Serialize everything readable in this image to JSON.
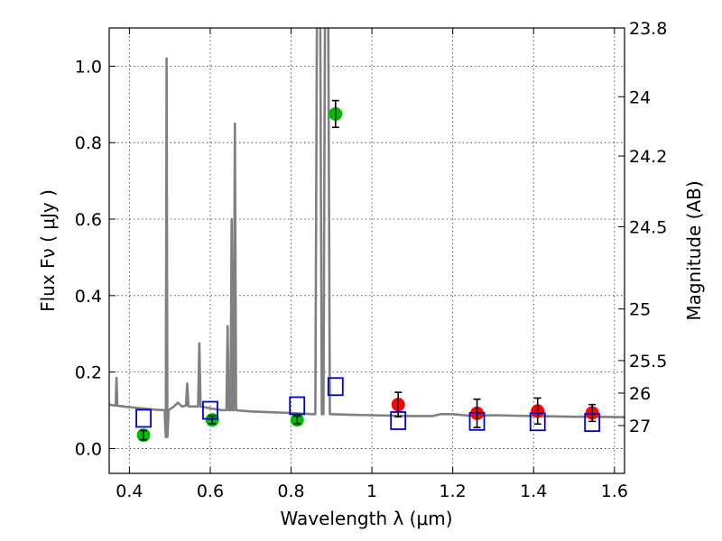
{
  "chart_data": {
    "type": "scatter",
    "xlabel": "Wavelength  λ (μm)",
    "ylabel": "Flux  Fν  ( μJy )",
    "y2label": "Magnitude (AB)",
    "xlim": [
      0.35,
      1.625
    ],
    "ylim": [
      -0.065,
      1.1
    ],
    "grid": true,
    "x_ticks": [
      0.4,
      0.6,
      0.8,
      1.0,
      1.2,
      1.4,
      1.6
    ],
    "x_tick_labels": [
      "0.4",
      "0.6",
      "0.8",
      "1",
      "1.2",
      "1.4",
      "1.6"
    ],
    "y_ticks": [
      0.0,
      0.2,
      0.4,
      0.6,
      0.8,
      1.0
    ],
    "y_tick_labels": [
      "0.0",
      "0.2",
      "0.4",
      "0.6",
      "0.8",
      "1.0"
    ],
    "y2_ticks": [
      {
        "label": "23.8",
        "flux": 1.1
      },
      {
        "label": "24",
        "flux": 0.92
      },
      {
        "label": "24.2",
        "flux": 0.765
      },
      {
        "label": "24.5",
        "flux": 0.58
      },
      {
        "label": "25",
        "flux": 0.365
      },
      {
        "label": "25.5",
        "flux": 0.23
      },
      {
        "label": "26",
        "flux": 0.145
      },
      {
        "label": "27",
        "flux": 0.06
      }
    ],
    "colors": {
      "spectrum": "#808080",
      "green": "#00bb00",
      "red": "#ff0000",
      "model": "#0000cc",
      "error": "#000000"
    },
    "spectrum": [
      [
        0.35,
        0.115
      ],
      [
        0.36,
        0.113
      ],
      [
        0.366,
        0.112
      ],
      [
        0.368,
        0.185
      ],
      [
        0.37,
        0.112
      ],
      [
        0.4,
        0.108
      ],
      [
        0.43,
        0.105
      ],
      [
        0.46,
        0.102
      ],
      [
        0.487,
        0.1
      ],
      [
        0.49,
        0.03
      ],
      [
        0.492,
        1.02
      ],
      [
        0.494,
        0.03
      ],
      [
        0.497,
        0.1
      ],
      [
        0.51,
        0.11
      ],
      [
        0.52,
        0.12
      ],
      [
        0.53,
        0.11
      ],
      [
        0.54,
        0.112
      ],
      [
        0.543,
        0.17
      ],
      [
        0.546,
        0.11
      ],
      [
        0.56,
        0.11
      ],
      [
        0.57,
        0.11
      ],
      [
        0.573,
        0.275
      ],
      [
        0.576,
        0.11
      ],
      [
        0.6,
        0.105
      ],
      [
        0.63,
        0.1
      ],
      [
        0.64,
        0.1
      ],
      [
        0.643,
        0.32
      ],
      [
        0.646,
        0.1
      ],
      [
        0.65,
        0.1
      ],
      [
        0.653,
        0.6
      ],
      [
        0.656,
        0.1
      ],
      [
        0.658,
        0.1
      ],
      [
        0.661,
        0.85
      ],
      [
        0.664,
        0.1
      ],
      [
        0.7,
        0.097
      ],
      [
        0.75,
        0.095
      ],
      [
        0.8,
        0.093
      ],
      [
        0.85,
        0.09
      ],
      [
        0.86,
        0.09
      ],
      [
        0.864,
        1.15
      ],
      [
        0.872,
        1.15
      ],
      [
        0.876,
        0.09
      ],
      [
        0.88,
        0.09
      ],
      [
        0.884,
        1.15
      ],
      [
        0.892,
        1.15
      ],
      [
        0.896,
        0.09
      ],
      [
        0.95,
        0.088
      ],
      [
        1.0,
        0.087
      ],
      [
        1.05,
        0.086
      ],
      [
        1.1,
        0.085
      ],
      [
        1.15,
        0.085
      ],
      [
        1.17,
        0.09
      ],
      [
        1.2,
        0.09
      ],
      [
        1.25,
        0.085
      ],
      [
        1.3,
        0.087
      ],
      [
        1.35,
        0.086
      ],
      [
        1.4,
        0.085
      ],
      [
        1.45,
        0.084
      ],
      [
        1.5,
        0.083
      ],
      [
        1.55,
        0.083
      ],
      [
        1.625,
        0.082
      ]
    ],
    "series": [
      {
        "color": "green",
        "marker": "circle",
        "points": [
          {
            "x": 0.435,
            "y": 0.035,
            "err": 0.012
          },
          {
            "x": 0.605,
            "y": 0.075,
            "err": 0.01
          },
          {
            "x": 0.815,
            "y": 0.075,
            "err": 0.01
          },
          {
            "x": 0.91,
            "y": 0.875,
            "err": 0.035
          }
        ]
      },
      {
        "color": "red",
        "marker": "circle",
        "points": [
          {
            "x": 1.065,
            "y": 0.115,
            "err": 0.032
          },
          {
            "x": 1.26,
            "y": 0.092,
            "err": 0.037
          },
          {
            "x": 1.41,
            "y": 0.098,
            "err": 0.034
          },
          {
            "x": 1.545,
            "y": 0.093,
            "err": 0.022
          }
        ]
      },
      {
        "color": "model",
        "marker": "open-square",
        "points": [
          {
            "x": 0.435,
            "y": 0.079
          },
          {
            "x": 0.6,
            "y": 0.1
          },
          {
            "x": 0.815,
            "y": 0.112
          },
          {
            "x": 0.91,
            "y": 0.162
          },
          {
            "x": 1.065,
            "y": 0.073
          },
          {
            "x": 1.26,
            "y": 0.071
          },
          {
            "x": 1.41,
            "y": 0.07
          },
          {
            "x": 1.545,
            "y": 0.068
          }
        ]
      }
    ]
  }
}
